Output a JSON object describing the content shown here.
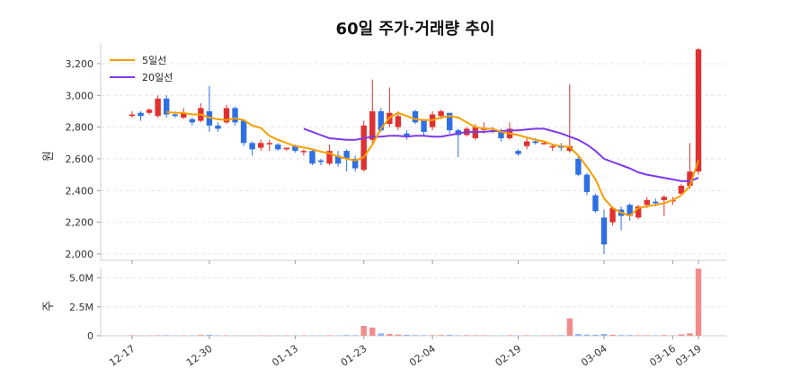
{
  "chart_data": {
    "type": "candlestick",
    "title": "60일 주가·거래량 추이",
    "price_panel": {
      "ylabel": "원",
      "yticks": [
        2000,
        2200,
        2400,
        2600,
        2800,
        3000,
        3200
      ],
      "ytick_labels": [
        "2,000",
        "2,200",
        "2,400",
        "2,600",
        "2,800",
        "3,000",
        "3,200"
      ],
      "ylim": [
        1960,
        3330
      ],
      "grid": true
    },
    "volume_panel": {
      "ylabel": "주",
      "yticks": [
        0,
        2500000,
        5000000
      ],
      "ytick_labels": [
        "0",
        "2.5M",
        "5.0M"
      ],
      "ylim": [
        0,
        5900000
      ],
      "grid": true
    },
    "xtick_labels": [
      "12-17",
      "12-30",
      "01-13",
      "01-23",
      "02-04",
      "02-19",
      "03-04",
      "03-16",
      "03-19"
    ],
    "xtick_index": [
      0,
      9,
      19,
      27,
      35,
      45,
      55,
      63,
      66
    ],
    "legend": {
      "position": "top-left",
      "entries": [
        "5일선",
        "20일선"
      ]
    },
    "colors": {
      "up": "#e03131",
      "down": "#2f6fe4",
      "ma5": "#f59f00",
      "ma20": "#7c3aed",
      "up_vol": "#f08c8c",
      "down_vol": "#8fb2ee"
    },
    "candles": {
      "open": [
        2870,
        2890,
        2890,
        2870,
        2980,
        2880,
        2860,
        2850,
        2840,
        2900,
        2810,
        2830,
        2920,
        2840,
        2700,
        2670,
        2700,
        2690,
        2660,
        2680,
        2650,
        2650,
        2590,
        2570,
        2620,
        2650,
        2600,
        2530,
        2720,
        2900,
        2820,
        2800,
        2760,
        2900,
        2840,
        2800,
        2870,
        2890,
        2780,
        2750,
        2730,
        2790,
        2780,
        2770,
        2730,
        2650,
        2680,
        2710,
        2700,
        2680,
        2680,
        2650,
        2600,
        2500,
        2370,
        2230,
        2200,
        2280,
        2310,
        2230,
        2310,
        2330,
        2340,
        2340,
        2380,
        2430,
        2520
      ],
      "close": [
        2880,
        2870,
        2910,
        2980,
        2880,
        2870,
        2890,
        2830,
        2920,
        2810,
        2790,
        2920,
        2830,
        2700,
        2660,
        2700,
        2700,
        2660,
        2670,
        2650,
        2650,
        2570,
        2580,
        2650,
        2570,
        2600,
        2540,
        2810,
        2900,
        2780,
        2890,
        2870,
        2740,
        2830,
        2770,
        2880,
        2900,
        2780,
        2750,
        2790,
        2800,
        2790,
        2770,
        2730,
        2790,
        2630,
        2710,
        2700,
        2700,
        2680,
        2670,
        2680,
        2500,
        2390,
        2270,
        2060,
        2290,
        2240,
        2240,
        2300,
        2340,
        2320,
        2360,
        2340,
        2430,
        2520,
        3290
      ],
      "high": [
        2900,
        2900,
        2920,
        3000,
        3000,
        2900,
        2920,
        2860,
        2950,
        3060,
        2830,
        2940,
        2930,
        2840,
        2710,
        2720,
        2720,
        2700,
        2670,
        2690,
        2660,
        2660,
        2600,
        2690,
        2650,
        2660,
        2620,
        2840,
        3100,
        2920,
        3050,
        2900,
        2780,
        2910,
        2850,
        2900,
        2910,
        2890,
        2790,
        2800,
        2820,
        2830,
        2800,
        2790,
        2830,
        2660,
        2730,
        2730,
        2710,
        2690,
        2700,
        3070,
        2620,
        2510,
        2380,
        2280,
        2300,
        2300,
        2320,
        2310,
        2360,
        2350,
        2370,
        2360,
        2440,
        2700,
        3300
      ],
      "low": [
        2860,
        2840,
        2880,
        2860,
        2860,
        2860,
        2850,
        2810,
        2830,
        2770,
        2770,
        2820,
        2810,
        2680,
        2620,
        2650,
        2650,
        2650,
        2650,
        2640,
        2620,
        2560,
        2560,
        2560,
        2550,
        2520,
        2520,
        2520,
        2700,
        2770,
        2800,
        2780,
        2720,
        2820,
        2750,
        2780,
        2850,
        2760,
        2610,
        2740,
        2720,
        2760,
        2760,
        2710,
        2720,
        2620,
        2660,
        2690,
        2690,
        2650,
        2650,
        2640,
        2490,
        2370,
        2260,
        2000,
        2180,
        2150,
        2210,
        2220,
        2290,
        2300,
        2240,
        2310,
        2370,
        2410,
        2500
      ],
      "ma5": [
        null,
        null,
        null,
        null,
        2896,
        2890,
        2890,
        2880,
        2880,
        2860,
        2850,
        2845,
        2855,
        2845,
        2810,
        2795,
        2745,
        2720,
        2700,
        2680,
        2672,
        2660,
        2645,
        2635,
        2615,
        2600,
        2590,
        2610,
        2690,
        2790,
        2860,
        2890,
        2870,
        2850,
        2845,
        2845,
        2860,
        2870,
        2860,
        2830,
        2800,
        2790,
        2790,
        2770,
        2760,
        2750,
        2735,
        2720,
        2710,
        2690,
        2680,
        2675,
        2620,
        2550,
        2470,
        2350,
        2290,
        2260,
        2240,
        2290,
        2300,
        2310,
        2320,
        2340,
        2370,
        2430,
        2590
      ],
      "ma20": [
        null,
        null,
        null,
        null,
        null,
        null,
        null,
        null,
        null,
        null,
        null,
        null,
        null,
        null,
        null,
        null,
        null,
        null,
        null,
        null,
        2790,
        2770,
        2750,
        2730,
        2725,
        2720,
        2720,
        2730,
        2740,
        2740,
        2745,
        2745,
        2740,
        2745,
        2745,
        2740,
        2740,
        2750,
        2760,
        2770,
        2770,
        2770,
        2775,
        2775,
        2780,
        2780,
        2785,
        2790,
        2790,
        2775,
        2760,
        2740,
        2720,
        2690,
        2650,
        2600,
        2580,
        2560,
        2540,
        2515,
        2500,
        2490,
        2480,
        2470,
        2460,
        2460,
        2480
      ],
      "volume": [
        30000,
        20000,
        25000,
        40000,
        50000,
        30000,
        30000,
        30000,
        60000,
        80000,
        40000,
        30000,
        30000,
        20000,
        20000,
        30000,
        20000,
        20000,
        20000,
        20000,
        30000,
        20000,
        30000,
        40000,
        40000,
        60000,
        50000,
        850000,
        700000,
        200000,
        150000,
        100000,
        80000,
        60000,
        50000,
        50000,
        60000,
        70000,
        40000,
        50000,
        40000,
        40000,
        30000,
        30000,
        50000,
        30000,
        40000,
        30000,
        30000,
        30000,
        50000,
        1500000,
        150000,
        100000,
        80000,
        150000,
        80000,
        60000,
        60000,
        40000,
        40000,
        40000,
        60000,
        30000,
        120000,
        200000,
        5800000
      ]
    }
  }
}
